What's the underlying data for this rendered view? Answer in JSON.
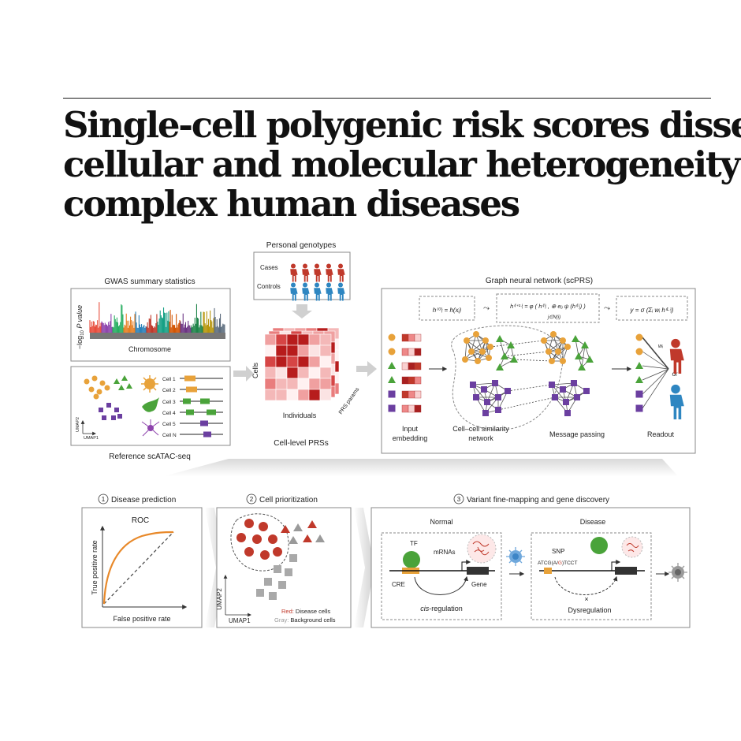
{
  "headline": {
    "line1": "Single-cell polygenic risk scores dissect",
    "line2": "cellular and molecular heterogeneity of",
    "line3": "complex human diseases"
  },
  "gwas": {
    "title": "GWAS summary statistics",
    "y_label_prefix": "−log",
    "y_label_sub": "10",
    "y_label_suffix": " P value",
    "x_label": "Chromosome"
  },
  "genotypes": {
    "title": "Personal genotypes",
    "cases": "Cases",
    "controls": "Controls"
  },
  "reference": {
    "title": "Reference scATAC-seq",
    "cells": [
      "Cell 1",
      "Cell 2",
      "Cell 3",
      "Cell 4",
      "Cell 5",
      "Cell N"
    ],
    "umap1": "UMAP1",
    "umap2": "UMAP2"
  },
  "prs": {
    "title": "Cell-level PRSs",
    "cells": "Cells",
    "individuals": "Individuals",
    "params": "PRS params"
  },
  "gnn": {
    "title": "Graph neural network (scPRS)",
    "eq1": "h⁽⁰⁾ᵢ = h(xᵢ)",
    "eq2": "h⁽ˡ⁺¹⁾ᵢ = φ ( h⁽ˡ⁾ᵢ , ⊕ eᵢⱼ ψ (h⁽ˡ⁾ⱼ) )",
    "eq2_sub": "j∈N(i)",
    "eq3": "y = σ (Σᵢ wᵢ h⁽ᴸ⁾ᵢ)",
    "input_embedding": "Input\nembedding",
    "similarity": "Cell–cell similarity\nnetwork",
    "message": "Message passing",
    "readout": "Readout",
    "wi": "wᵢ",
    "or": "or"
  },
  "disease_prediction": {
    "title": "Disease prediction",
    "num": "1",
    "roc": "ROC",
    "ylabel": "True positive rate",
    "xlabel": "False positive rate"
  },
  "cell_prioritization": {
    "title": "Cell prioritization",
    "num": "2",
    "umap1": "UMAP1",
    "umap2": "UMAP2",
    "red_key": "Red:",
    "red_text": " Disease cells",
    "gray_key": "Gray:",
    "gray_text": " Background cells"
  },
  "finemapping": {
    "title": "Variant fine-mapping and gene discovery",
    "num": "3",
    "normal": "Normal",
    "disease": "Disease",
    "tf": "TF",
    "mrnas": "mRNAs",
    "cre": "CRE",
    "gene": "Gene",
    "cis_prefix": "cis",
    "cis_suffix": "-regulation",
    "snp": "SNP",
    "seq_a": "ATCG(A/",
    "seq_b": "G",
    "seq_c": ")TCCT",
    "dysregulation": "Dysregulation"
  },
  "colors": {
    "red": "#c0392b",
    "red_dark": "#b22222",
    "green": "#4aa33a",
    "purple": "#6b3fa0",
    "orange": "#e8a23a",
    "blue": "#2e86c1",
    "gray": "#9a9a9a"
  }
}
